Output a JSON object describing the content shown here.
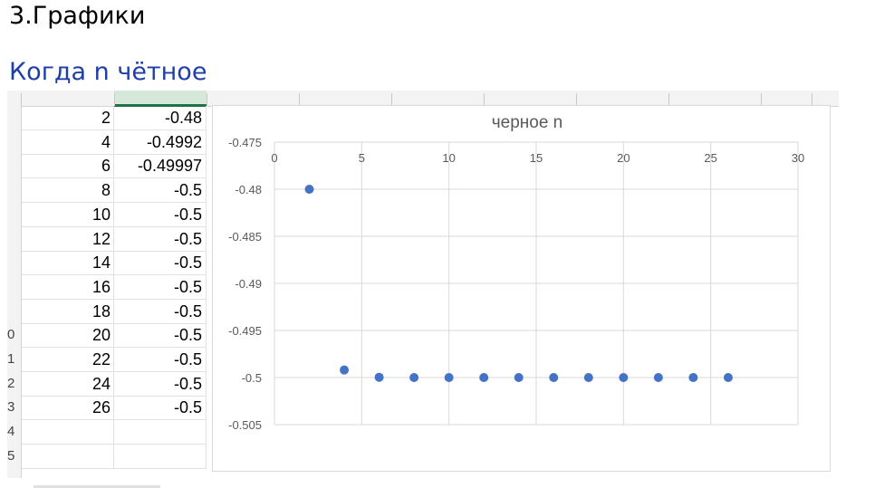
{
  "heading": "3.Графики",
  "subheading": "Когда n чётное",
  "table": {
    "rows": [
      {
        "row": "",
        "n": "2",
        "value": "-0.48"
      },
      {
        "row": "",
        "n": "4",
        "value": "-0.4992"
      },
      {
        "row": "",
        "n": "6",
        "value": "-0.49997"
      },
      {
        "row": "",
        "n": "8",
        "value": "-0.5"
      },
      {
        "row": "",
        "n": "10",
        "value": "-0.5"
      },
      {
        "row": "",
        "n": "12",
        "value": "-0.5"
      },
      {
        "row": "",
        "n": "14",
        "value": "-0.5"
      },
      {
        "row": "",
        "n": "16",
        "value": "-0.5"
      },
      {
        "row": "",
        "n": "18",
        "value": "-0.5"
      },
      {
        "row": "0",
        "n": "20",
        "value": "-0.5"
      },
      {
        "row": "1",
        "n": "22",
        "value": "-0.5"
      },
      {
        "row": "2",
        "n": "24",
        "value": "-0.5"
      },
      {
        "row": "3",
        "n": "26",
        "value": "-0.5"
      },
      {
        "row": "4",
        "n": "",
        "value": ""
      },
      {
        "row": "5",
        "n": "",
        "value": ""
      }
    ]
  },
  "chart_data": {
    "type": "scatter",
    "title": "черное n",
    "xlabel": "",
    "ylabel": "",
    "xlim": [
      0,
      30
    ],
    "ylim": [
      -0.505,
      -0.475
    ],
    "x_ticks": [
      0,
      5,
      10,
      15,
      20,
      25,
      30
    ],
    "y_ticks": [
      -0.475,
      -0.48,
      -0.485,
      -0.49,
      -0.495,
      -0.5,
      -0.505
    ],
    "x_tick_labels": [
      "0",
      "5",
      "10",
      "15",
      "20",
      "25",
      "30"
    ],
    "y_tick_labels": [
      "-0.475",
      "-0.48",
      "-0.485",
      "-0.49",
      "-0.495",
      "-0.5",
      "-0.505"
    ],
    "x_axis_position": "top",
    "grid": true,
    "legend": "none",
    "marker_color": "#4472c4",
    "series": [
      {
        "x": [
          2,
          4,
          6,
          8,
          10,
          12,
          14,
          16,
          18,
          20,
          22,
          24,
          26
        ],
        "y": [
          -0.48,
          -0.4992,
          -0.49997,
          -0.5,
          -0.5,
          -0.5,
          -0.5,
          -0.5,
          -0.5,
          -0.5,
          -0.5,
          -0.5,
          -0.5
        ]
      }
    ]
  }
}
